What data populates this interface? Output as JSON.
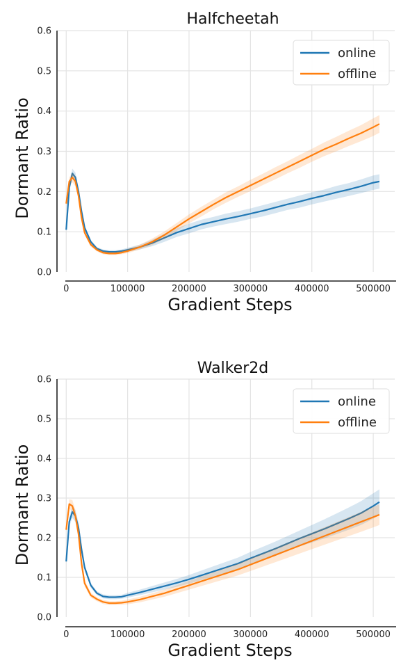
{
  "chart_data": [
    {
      "type": "line",
      "title": "Halfcheetah",
      "xlabel": "Gradient Steps",
      "ylabel": "Dormant Ratio",
      "xlim": [
        -15000,
        535000
      ],
      "ylim": [
        0.0,
        0.6
      ],
      "xticks": [
        0,
        100000,
        200000,
        300000,
        400000,
        500000
      ],
      "xtick_labels": [
        "0",
        "100000",
        "200000",
        "300000",
        "400000",
        "500000"
      ],
      "yticks": [
        0.0,
        0.1,
        0.2,
        0.3,
        0.4,
        0.5,
        0.6
      ],
      "ytick_labels": [
        "0.0",
        "0.1",
        "0.2",
        "0.3",
        "0.4",
        "0.5",
        "0.6"
      ],
      "grid": true,
      "legend_position": "top-right",
      "series": [
        {
          "name": "online",
          "color": "#1f77b4",
          "x": [
            0,
            5000,
            10000,
            15000,
            20000,
            25000,
            30000,
            40000,
            50000,
            60000,
            70000,
            80000,
            90000,
            100000,
            120000,
            140000,
            160000,
            180000,
            200000,
            220000,
            240000,
            260000,
            280000,
            300000,
            320000,
            340000,
            360000,
            380000,
            400000,
            420000,
            440000,
            460000,
            480000,
            500000,
            510000
          ],
          "y": [
            0.105,
            0.21,
            0.245,
            0.235,
            0.2,
            0.15,
            0.11,
            0.075,
            0.058,
            0.052,
            0.05,
            0.05,
            0.052,
            0.055,
            0.062,
            0.072,
            0.085,
            0.098,
            0.108,
            0.118,
            0.125,
            0.132,
            0.138,
            0.145,
            0.152,
            0.16,
            0.168,
            0.175,
            0.183,
            0.19,
            0.198,
            0.205,
            0.213,
            0.222,
            0.225
          ],
          "band": [
            0.005,
            0.01,
            0.012,
            0.012,
            0.01,
            0.008,
            0.006,
            0.005,
            0.004,
            0.004,
            0.004,
            0.004,
            0.004,
            0.005,
            0.006,
            0.008,
            0.01,
            0.011,
            0.012,
            0.012,
            0.012,
            0.013,
            0.013,
            0.013,
            0.014,
            0.014,
            0.014,
            0.015,
            0.015,
            0.015,
            0.016,
            0.016,
            0.017,
            0.018,
            0.018
          ]
        },
        {
          "name": "offline",
          "color": "#ff7f0e",
          "x": [
            0,
            5000,
            10000,
            15000,
            20000,
            25000,
            30000,
            40000,
            50000,
            60000,
            70000,
            80000,
            90000,
            100000,
            120000,
            140000,
            160000,
            180000,
            200000,
            220000,
            240000,
            260000,
            280000,
            300000,
            320000,
            340000,
            360000,
            380000,
            400000,
            420000,
            440000,
            460000,
            480000,
            500000,
            510000
          ],
          "y": [
            0.17,
            0.225,
            0.235,
            0.225,
            0.19,
            0.135,
            0.098,
            0.068,
            0.055,
            0.048,
            0.046,
            0.046,
            0.048,
            0.052,
            0.062,
            0.075,
            0.092,
            0.112,
            0.132,
            0.15,
            0.168,
            0.185,
            0.2,
            0.215,
            0.23,
            0.245,
            0.26,
            0.275,
            0.29,
            0.305,
            0.318,
            0.332,
            0.345,
            0.36,
            0.368
          ],
          "band": [
            0.005,
            0.01,
            0.012,
            0.012,
            0.01,
            0.008,
            0.006,
            0.005,
            0.004,
            0.004,
            0.004,
            0.004,
            0.004,
            0.005,
            0.006,
            0.008,
            0.009,
            0.01,
            0.011,
            0.012,
            0.012,
            0.013,
            0.013,
            0.014,
            0.014,
            0.015,
            0.015,
            0.016,
            0.016,
            0.017,
            0.018,
            0.019,
            0.02,
            0.022,
            0.022
          ]
        }
      ]
    },
    {
      "type": "line",
      "title": "Walker2d",
      "xlabel": "Gradient Steps",
      "ylabel": "Dormant Ratio",
      "xlim": [
        -15000,
        535000
      ],
      "ylim": [
        0.0,
        0.6
      ],
      "xticks": [
        0,
        100000,
        200000,
        300000,
        400000,
        500000
      ],
      "xtick_labels": [
        "0",
        "100000",
        "200000",
        "300000",
        "400000",
        "500000"
      ],
      "yticks": [
        0.0,
        0.1,
        0.2,
        0.3,
        0.4,
        0.5,
        0.6
      ],
      "ytick_labels": [
        "0.0",
        "0.1",
        "0.2",
        "0.3",
        "0.4",
        "0.5",
        "0.6"
      ],
      "grid": true,
      "legend_position": "top-right",
      "series": [
        {
          "name": "online",
          "color": "#1f77b4",
          "x": [
            0,
            5000,
            10000,
            15000,
            20000,
            25000,
            30000,
            40000,
            50000,
            60000,
            70000,
            80000,
            90000,
            100000,
            120000,
            140000,
            160000,
            180000,
            200000,
            220000,
            240000,
            260000,
            280000,
            300000,
            320000,
            340000,
            360000,
            380000,
            400000,
            420000,
            440000,
            460000,
            480000,
            500000,
            510000
          ],
          "y": [
            0.14,
            0.24,
            0.265,
            0.255,
            0.225,
            0.17,
            0.125,
            0.08,
            0.06,
            0.052,
            0.05,
            0.05,
            0.051,
            0.055,
            0.062,
            0.07,
            0.078,
            0.086,
            0.095,
            0.105,
            0.115,
            0.125,
            0.135,
            0.148,
            0.16,
            0.172,
            0.185,
            0.198,
            0.21,
            0.222,
            0.235,
            0.248,
            0.262,
            0.28,
            0.29
          ],
          "band": [
            0.006,
            0.012,
            0.015,
            0.015,
            0.013,
            0.01,
            0.008,
            0.006,
            0.005,
            0.005,
            0.005,
            0.005,
            0.005,
            0.006,
            0.007,
            0.008,
            0.009,
            0.01,
            0.011,
            0.012,
            0.013,
            0.014,
            0.015,
            0.016,
            0.017,
            0.018,
            0.019,
            0.02,
            0.022,
            0.024,
            0.026,
            0.028,
            0.03,
            0.032,
            0.032
          ]
        },
        {
          "name": "offline",
          "color": "#ff7f0e",
          "x": [
            0,
            5000,
            10000,
            15000,
            20000,
            25000,
            30000,
            40000,
            50000,
            60000,
            70000,
            80000,
            90000,
            100000,
            120000,
            140000,
            160000,
            180000,
            200000,
            220000,
            240000,
            260000,
            280000,
            300000,
            320000,
            340000,
            360000,
            380000,
            400000,
            420000,
            440000,
            460000,
            480000,
            500000,
            510000
          ],
          "y": [
            0.22,
            0.285,
            0.28,
            0.255,
            0.21,
            0.135,
            0.085,
            0.055,
            0.045,
            0.038,
            0.035,
            0.035,
            0.036,
            0.038,
            0.044,
            0.052,
            0.06,
            0.07,
            0.08,
            0.09,
            0.1,
            0.11,
            0.12,
            0.132,
            0.144,
            0.156,
            0.168,
            0.18,
            0.192,
            0.204,
            0.216,
            0.228,
            0.24,
            0.252,
            0.258
          ],
          "band": [
            0.006,
            0.012,
            0.015,
            0.015,
            0.013,
            0.01,
            0.008,
            0.006,
            0.005,
            0.005,
            0.005,
            0.005,
            0.005,
            0.006,
            0.007,
            0.008,
            0.009,
            0.01,
            0.011,
            0.012,
            0.013,
            0.014,
            0.015,
            0.016,
            0.017,
            0.018,
            0.019,
            0.02,
            0.021,
            0.022,
            0.023,
            0.024,
            0.025,
            0.026,
            0.026
          ]
        }
      ]
    }
  ]
}
